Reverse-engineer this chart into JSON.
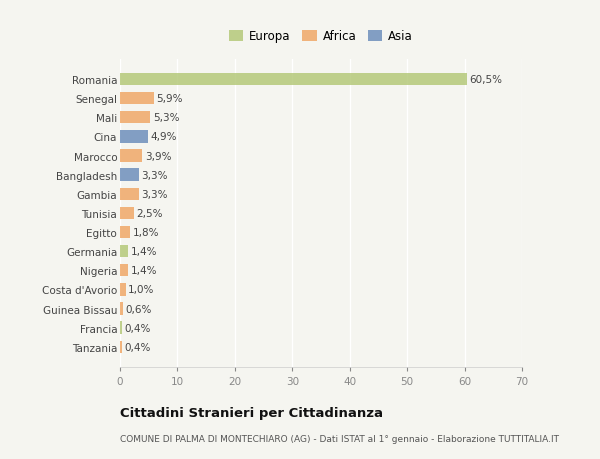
{
  "countries": [
    "Romania",
    "Senegal",
    "Mali",
    "Cina",
    "Marocco",
    "Bangladesh",
    "Gambia",
    "Tunisia",
    "Egitto",
    "Germania",
    "Nigeria",
    "Costa d'Avorio",
    "Guinea Bissau",
    "Francia",
    "Tanzania"
  ],
  "values": [
    60.5,
    5.9,
    5.3,
    4.9,
    3.9,
    3.3,
    3.3,
    2.5,
    1.8,
    1.4,
    1.4,
    1.0,
    0.6,
    0.4,
    0.4
  ],
  "labels": [
    "60,5%",
    "5,9%",
    "5,3%",
    "4,9%",
    "3,9%",
    "3,3%",
    "3,3%",
    "2,5%",
    "1,8%",
    "1,4%",
    "1,4%",
    "1,0%",
    "0,6%",
    "0,4%",
    "0,4%"
  ],
  "colors": [
    "#b5c97a",
    "#f0a868",
    "#f0a868",
    "#6e8fbb",
    "#f0a868",
    "#6e8fbb",
    "#f0a868",
    "#f0a868",
    "#f0a868",
    "#b5c97a",
    "#f0a868",
    "#f0a868",
    "#f0a868",
    "#b5c97a",
    "#f0a868"
  ],
  "legend_labels": [
    "Europa",
    "Africa",
    "Asia"
  ],
  "legend_colors": [
    "#b5c97a",
    "#f0a868",
    "#6e8fbb"
  ],
  "title": "Cittadini Stranieri per Cittadinanza",
  "subtitle": "COMUNE DI PALMA DI MONTECHIARO (AG) - Dati ISTAT al 1° gennaio - Elaborazione TUTTITALIA.IT",
  "xlim": [
    0,
    70
  ],
  "xticks": [
    0,
    10,
    20,
    30,
    40,
    50,
    60,
    70
  ],
  "bg_color": "#f5f5f0"
}
